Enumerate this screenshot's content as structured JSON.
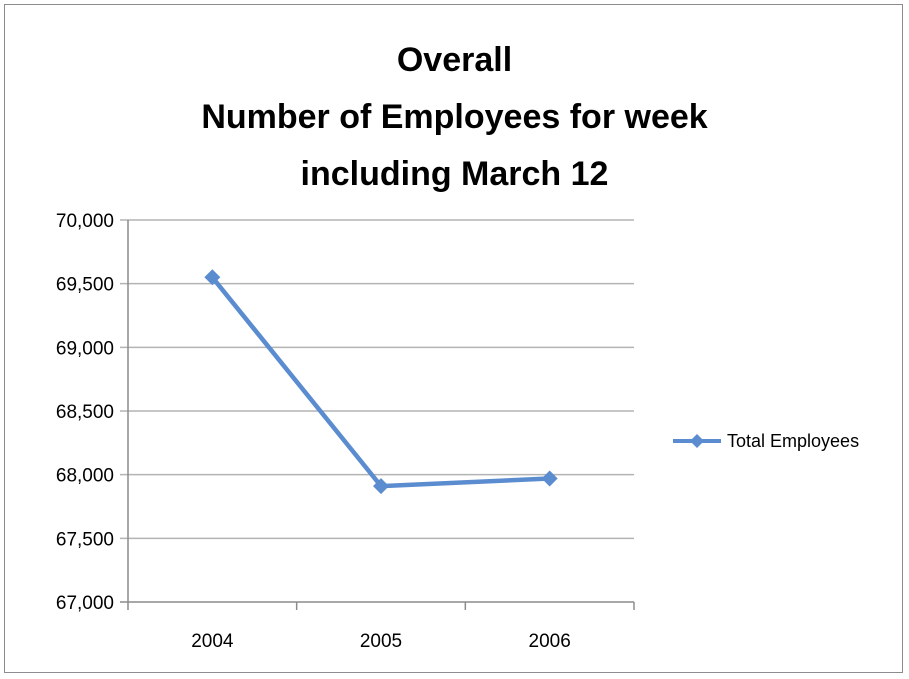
{
  "chart_data": {
    "type": "line",
    "title_lines": [
      "Overall",
      "Number of Employees for week",
      "including March 12"
    ],
    "categories": [
      "2004",
      "2005",
      "2006"
    ],
    "series": [
      {
        "name": "Total Employees",
        "values": [
          69550,
          67910,
          67970
        ]
      }
    ],
    "y_ticks": [
      "70,000",
      "69,500",
      "69,000",
      "68,500",
      "68,000",
      "67,500",
      "67,000"
    ],
    "ylim": [
      67000,
      70000
    ],
    "ytick_step": 500,
    "grid": true,
    "legend_position": "right",
    "colors": {
      "series": "#5b8cd0",
      "grid": "#b3b3b3",
      "axis": "#8c8c8c"
    }
  }
}
